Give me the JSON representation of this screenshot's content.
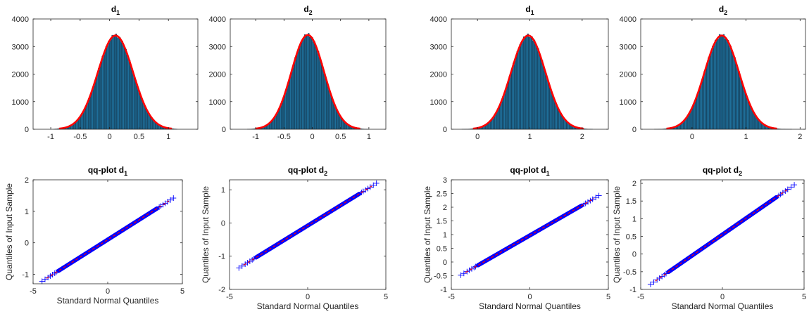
{
  "chart_data": [
    {
      "id": "hist-1",
      "type": "histogram",
      "title_main": "d",
      "title_sub": "1",
      "xlim": [
        -1.3,
        1.5
      ],
      "ylim": [
        0,
        4000
      ],
      "xticks": [
        -1,
        -0.5,
        0,
        0.5,
        1
      ],
      "xtick_labels": [
        "-1",
        "-0.5",
        "0",
        "0.5",
        "1"
      ],
      "yticks": [
        0,
        1000,
        2000,
        3000,
        4000
      ],
      "ytick_labels": [
        "0",
        "1000",
        "2000",
        "3000",
        "4000"
      ],
      "distribution": {
        "mean": 0.1,
        "std": 0.3,
        "peak": 3400
      },
      "bar_range": [
        -0.95,
        1.15
      ],
      "bar_count": 100,
      "bar_color": "#1f6f9a",
      "fit_color": "#ff0000"
    },
    {
      "id": "hist-2",
      "type": "histogram",
      "title_main": "d",
      "title_sub": "2",
      "xlim": [
        -1.45,
        1.3
      ],
      "ylim": [
        0,
        4000
      ],
      "xticks": [
        -1,
        -0.5,
        0,
        0.5,
        1
      ],
      "xtick_labels": [
        "-1",
        "-0.5",
        "0",
        "0.5",
        "1"
      ],
      "yticks": [
        0,
        1000,
        2000,
        3000,
        4000
      ],
      "ytick_labels": [
        "0",
        "1000",
        "2000",
        "3000",
        "4000"
      ],
      "distribution": {
        "mean": -0.08,
        "std": 0.29,
        "peak": 3420
      },
      "bar_range": [
        -1.15,
        1.0
      ],
      "bar_count": 100,
      "bar_color": "#1f6f9a",
      "fit_color": "#ff0000"
    },
    {
      "id": "hist-3",
      "type": "histogram",
      "title_main": "d",
      "title_sub": "1",
      "xlim": [
        -0.5,
        2.5
      ],
      "ylim": [
        0,
        4000
      ],
      "xticks": [
        0,
        1,
        2
      ],
      "xtick_labels": [
        "0",
        "1",
        "2"
      ],
      "yticks": [
        0,
        1000,
        2000,
        3000,
        4000
      ],
      "ytick_labels": [
        "0",
        "1000",
        "2000",
        "3000",
        "4000"
      ],
      "distribution": {
        "mean": 0.97,
        "std": 0.33,
        "peak": 3400
      },
      "bar_range": [
        -0.3,
        2.2
      ],
      "bar_count": 100,
      "bar_color": "#1f6f9a",
      "fit_color": "#ff0000"
    },
    {
      "id": "hist-4",
      "type": "histogram",
      "title_main": "d",
      "title_sub": "2",
      "xlim": [
        -0.95,
        2.1
      ],
      "ylim": [
        0,
        4000
      ],
      "xticks": [
        0,
        1,
        2
      ],
      "xtick_labels": [
        "0",
        "1",
        "2"
      ],
      "yticks": [
        0,
        1000,
        2000,
        3000,
        4000
      ],
      "ytick_labels": [
        "0",
        "1000",
        "2000",
        "3000",
        "4000"
      ],
      "distribution": {
        "mean": 0.55,
        "std": 0.32,
        "peak": 3400
      },
      "bar_range": [
        -0.7,
        1.85
      ],
      "bar_count": 100,
      "bar_color": "#1f6f9a",
      "fit_color": "#ff0000"
    },
    {
      "id": "qq-1",
      "type": "scatter",
      "title_main": "qq-plot d",
      "title_sub": "1",
      "xlabel": "Standard Normal Quantiles",
      "ylabel": "Quantiles of Input Sample",
      "xlim": [
        -5,
        5
      ],
      "ylim": [
        -1.3,
        2
      ],
      "xticks": [
        -5,
        0,
        5
      ],
      "xtick_labels": [
        "-5",
        "0",
        "5"
      ],
      "yticks": [
        -1,
        0,
        1,
        2
      ],
      "ytick_labels": [
        "-1",
        "0",
        "1",
        "2"
      ],
      "fit_line": {
        "slope": 0.3,
        "intercept": 0.1
      },
      "x_range": [
        -4.4,
        4.4
      ],
      "marker_color": "#0000ff",
      "line_color": "#ff0000"
    },
    {
      "id": "qq-2",
      "type": "scatter",
      "title_main": "qq-plot d",
      "title_sub": "2",
      "xlabel": "Standard Normal Quantiles",
      "ylabel": "Quantiles of Input Sample",
      "xlim": [
        -5,
        5
      ],
      "ylim": [
        -2,
        1.3
      ],
      "xticks": [
        -5,
        0,
        5
      ],
      "xtick_labels": [
        "-5",
        "0",
        "5"
      ],
      "yticks": [
        -2,
        -1,
        0,
        1
      ],
      "ytick_labels": [
        "-2",
        "-1",
        "0",
        "1"
      ],
      "fit_line": {
        "slope": 0.29,
        "intercept": -0.08
      },
      "x_range": [
        -4.4,
        4.4
      ],
      "marker_color": "#0000ff",
      "line_color": "#ff0000"
    },
    {
      "id": "qq-3",
      "type": "scatter",
      "title_main": "qq-plot d",
      "title_sub": "1",
      "xlabel": "Standard Normal Quantiles",
      "ylabel": "Quantiles of Input Sample",
      "xlim": [
        -5,
        5
      ],
      "ylim": [
        -1,
        3
      ],
      "xticks": [
        -5,
        0,
        5
      ],
      "xtick_labels": [
        "-5",
        "0",
        "5"
      ],
      "yticks": [
        -1,
        -0.5,
        0,
        0.5,
        1,
        1.5,
        2,
        2.5,
        3
      ],
      "ytick_labels": [
        "-1",
        "-0.5",
        "0",
        "0.5",
        "1",
        "1.5",
        "2",
        "2.5",
        "3"
      ],
      "fit_line": {
        "slope": 0.33,
        "intercept": 0.97
      },
      "x_range": [
        -4.4,
        4.4
      ],
      "marker_color": "#0000ff",
      "line_color": "#ff0000"
    },
    {
      "id": "qq-4",
      "type": "scatter",
      "title_main": "qq-plot d",
      "title_sub": "2",
      "xlabel": "Standard Normal Quantiles",
      "ylabel": "Quantiles of Input Sample",
      "xlim": [
        -5,
        5
      ],
      "ylim": [
        -1,
        2.1
      ],
      "xticks": [
        -5,
        0,
        5
      ],
      "xtick_labels": [
        "-5",
        "0",
        "5"
      ],
      "yticks": [
        -1,
        -0.5,
        0,
        0.5,
        1,
        1.5,
        2
      ],
      "ytick_labels": [
        "-1",
        "-0.5",
        "0",
        "0.5",
        "1",
        "1.5",
        "2"
      ],
      "fit_line": {
        "slope": 0.32,
        "intercept": 0.55
      },
      "x_range": [
        -4.4,
        4.4
      ],
      "marker_color": "#0000ff",
      "line_color": "#ff0000"
    }
  ]
}
